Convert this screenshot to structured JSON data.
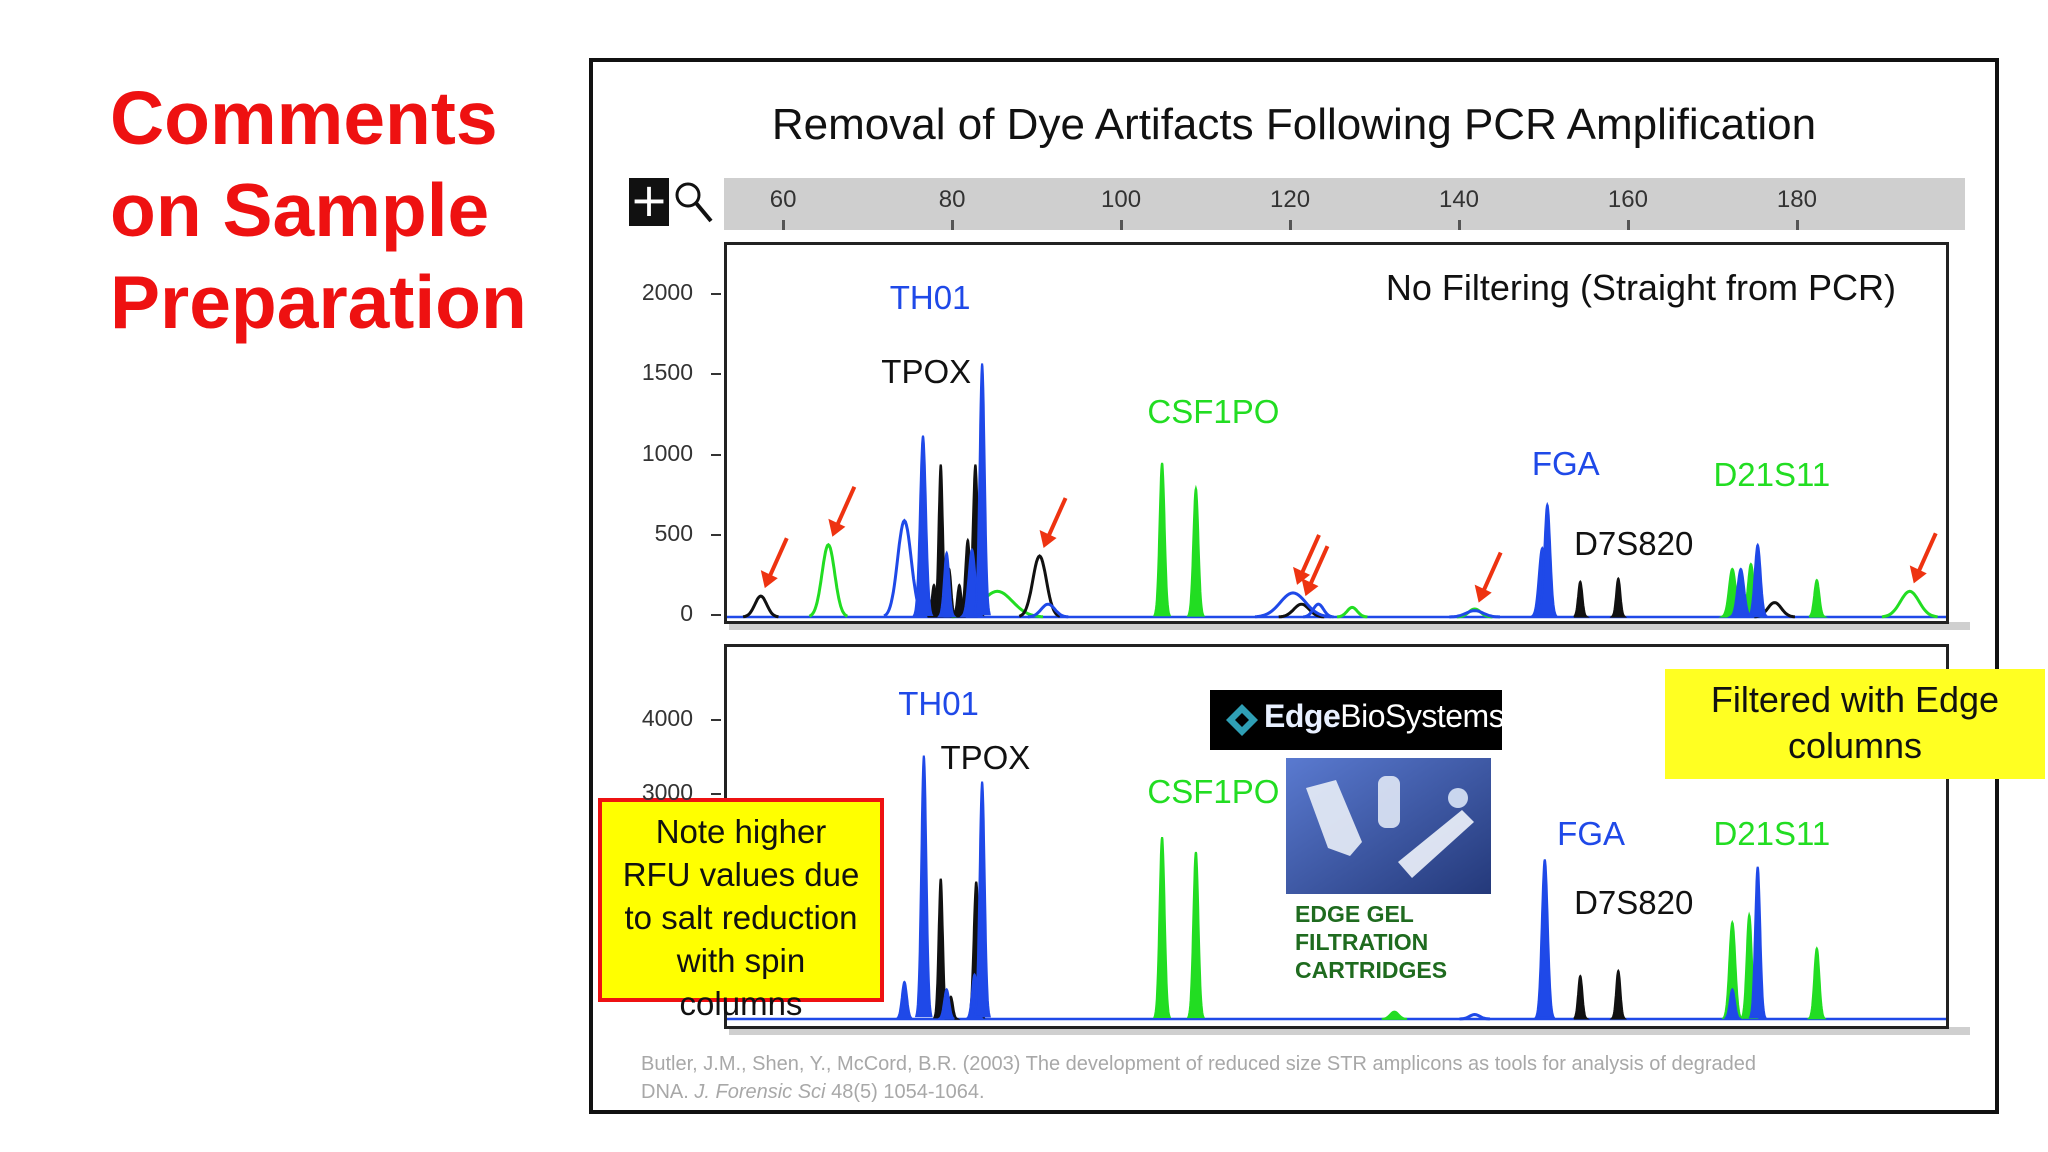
{
  "slide": {
    "title_lines": [
      "Comments",
      "on Sample",
      "Preparation"
    ]
  },
  "figure": {
    "title": "Removal of Dye Artifacts Following PCR Amplification",
    "citation_line1": "Butler, J.M., Shen, Y., McCord, B.R. (2003) The development of reduced size STR amplicons as tools for analysis of degraded",
    "citation_line2_a": "DNA.",
    "citation_journal": "J. Forensic Sci",
    "citation_line2_b": "48(5) 1054-1064."
  },
  "toolbar": {
    "plus_icon": "plus-icon",
    "zoom_icon": "magnifier-icon"
  },
  "colors": {
    "blue": "#1f49e8",
    "black": "#111111",
    "green": "#22dd22",
    "arrow": "#ee3311",
    "title_red": "#ee1111"
  },
  "chart_data": [
    {
      "type": "line",
      "panel": "top",
      "caption": "No Filtering (Straight from PCR)",
      "x_ticks": [
        "60",
        "80",
        "100",
        "120",
        "140",
        "160",
        "180"
      ],
      "x_tick_values": [
        60,
        80,
        100,
        120,
        140,
        160,
        180
      ],
      "xlim": [
        53,
        198
      ],
      "y_ticks": [
        "2000",
        "1500",
        "1000",
        "500",
        "0"
      ],
      "y_tick_values": [
        2000,
        1500,
        1000,
        500,
        0
      ],
      "ylim": [
        0,
        2150
      ],
      "peak_labels": [
        {
          "text": "TH01",
          "color": "blue",
          "x": 77,
          "y": 1980
        },
        {
          "text": "TPOX",
          "color": "black",
          "x": 76,
          "y": 1520
        },
        {
          "text": "CSF1PO",
          "color": "green",
          "x": 107.5,
          "y": 1270
        },
        {
          "text": "FGA",
          "color": "blue",
          "x": 153,
          "y": 950
        },
        {
          "text": "D21S11",
          "color": "green",
          "x": 174.5,
          "y": 880
        },
        {
          "text": "D7S820",
          "color": "black",
          "x": 158,
          "y": 450
        }
      ],
      "series": [
        {
          "color": "blue",
          "peaks": [
            [
              74,
              600,
              0.8
            ],
            [
              76.2,
              1130,
              0.35
            ],
            [
              79,
              400,
              0.3
            ],
            [
              82,
              420,
              0.4
            ],
            [
              83.2,
              1580,
              0.3
            ],
            [
              91,
              80,
              0.8
            ],
            [
              120,
              150,
              1.5
            ],
            [
              123,
              80,
              0.6
            ],
            [
              141.5,
              40,
              1.0
            ],
            [
              149.5,
              430,
              0.4
            ],
            [
              150.1,
              700,
              0.35
            ],
            [
              173,
              300,
              0.4
            ],
            [
              175,
              450,
              0.35
            ]
          ]
        },
        {
          "color": "black",
          "peaks": [
            [
              57,
              130,
              0.7
            ],
            [
              77.5,
              200,
              0.25
            ],
            [
              78.3,
              950,
              0.25
            ],
            [
              79.3,
              300,
              0.25
            ],
            [
              80.5,
              200,
              0.25
            ],
            [
              81.5,
              480,
              0.3
            ],
            [
              82.4,
              950,
              0.3
            ],
            [
              90,
              380,
              0.8
            ],
            [
              121,
              80,
              0.9
            ],
            [
              154,
              220,
              0.25
            ],
            [
              158.5,
              240,
              0.25
            ],
            [
              177,
              90,
              0.8
            ]
          ]
        },
        {
          "color": "green",
          "peaks": [
            [
              65,
              450,
              0.75
            ],
            [
              85,
              160,
              1.8
            ],
            [
              104.5,
              960,
              0.3
            ],
            [
              108.5,
              800,
              0.3
            ],
            [
              127,
              60,
              0.6
            ],
            [
              141.5,
              50,
              0.7
            ],
            [
              172,
              300,
              0.4
            ],
            [
              174.2,
              330,
              0.35
            ],
            [
              182,
              230,
              0.3
            ],
            [
              193,
              160,
              1.1
            ]
          ]
        }
      ],
      "artifact_arrows": [
        {
          "x": 57,
          "y": 130
        },
        {
          "x": 65,
          "y": 450
        },
        {
          "x": 90,
          "y": 380
        },
        {
          "x": 120,
          "y": 150
        },
        {
          "x": 121,
          "y": 80
        },
        {
          "x": 141.5,
          "y": 40
        },
        {
          "x": 193,
          "y": 160
        }
      ]
    },
    {
      "type": "line",
      "panel": "bottom",
      "caption": "Filtered with Edge columns",
      "y_ticks": [
        "4000",
        "3000"
      ],
      "y_tick_values": [
        4000,
        3000
      ],
      "ylim": [
        0,
        4650
      ],
      "peak_labels": [
        {
          "text": "TH01",
          "color": "blue",
          "x": 78,
          "y": 4230
        },
        {
          "text": "TPOX",
          "color": "black",
          "x": 83,
          "y": 3500
        },
        {
          "text": "CSF1PO",
          "color": "green",
          "x": 107.5,
          "y": 3040
        },
        {
          "text": "FGA",
          "color": "blue",
          "x": 156,
          "y": 2480
        },
        {
          "text": "D21S11",
          "color": "green",
          "x": 174.5,
          "y": 2480
        },
        {
          "text": "D7S820",
          "color": "black",
          "x": 158,
          "y": 1550
        }
      ],
      "series": [
        {
          "color": "blue",
          "peaks": [
            [
              74,
              500,
              0.3
            ],
            [
              76.3,
              3550,
              0.3
            ],
            [
              79,
              400,
              0.3
            ],
            [
              82.3,
              600,
              0.3
            ],
            [
              83.2,
              3200,
              0.3
            ],
            [
              141.5,
              60,
              0.6
            ],
            [
              149.8,
              2150,
              0.35
            ],
            [
              172,
              400,
              0.3
            ],
            [
              175,
              2050,
              0.3
            ]
          ]
        },
        {
          "color": "black",
          "peaks": [
            [
              78.3,
              1890,
              0.25
            ],
            [
              79.5,
              300,
              0.25
            ],
            [
              82.5,
              1850,
              0.3
            ],
            [
              154,
              580,
              0.25
            ],
            [
              158.5,
              650,
              0.25
            ]
          ]
        },
        {
          "color": "green",
          "peaks": [
            [
              104.5,
              2450,
              0.3
            ],
            [
              108.5,
              2250,
              0.3
            ],
            [
              132,
              100,
              0.5
            ],
            [
              172,
              1300,
              0.35
            ],
            [
              174,
              1400,
              0.3
            ],
            [
              182,
              950,
              0.3
            ]
          ]
        }
      ]
    }
  ],
  "edge_logo": {
    "brand_bold": "Edge",
    "brand_light": "BioSystems",
    "icon": "edge-logo-icon"
  },
  "product": {
    "label_lines": [
      "EDGE GEL",
      "FILTRATION",
      "CARTRIDGES"
    ]
  },
  "note": {
    "lines": [
      "Note higher",
      "RFU values due",
      "to salt reduction",
      "with spin",
      "columns"
    ]
  }
}
